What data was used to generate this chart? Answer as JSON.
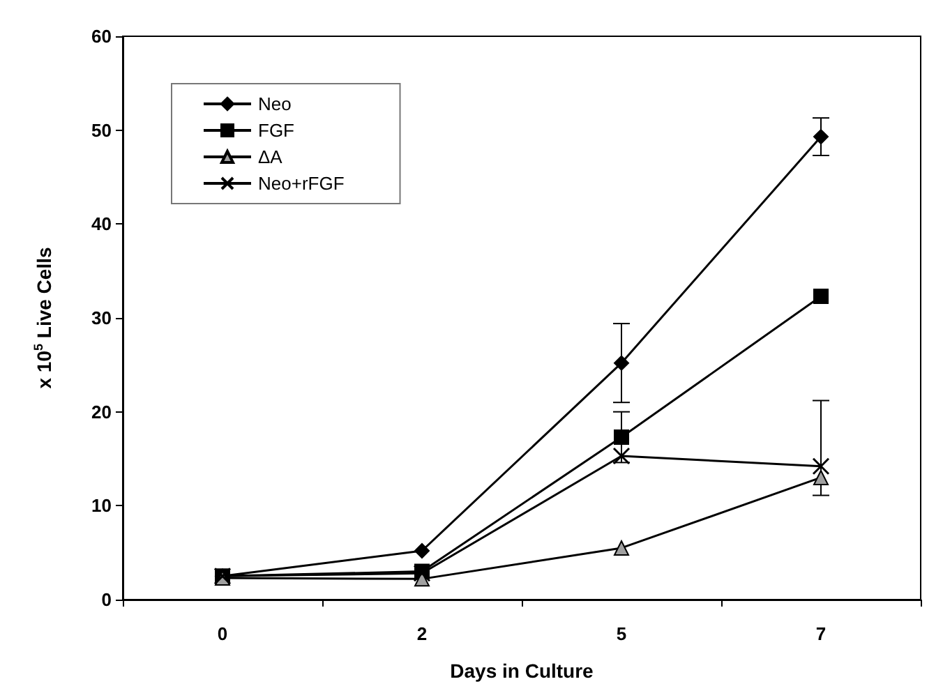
{
  "chart_data": {
    "type": "line",
    "xlabel": "Days in Culture",
    "ylabel": "x 10$^{5}$ Live Cells",
    "categories": [
      "0",
      "2",
      "5",
      "7"
    ],
    "series": [
      {
        "name": "Neo",
        "color": "#000000",
        "marker": "diamond",
        "values": [
          2.5,
          5.2,
          25.2,
          49.3
        ],
        "errors": [
          null,
          null,
          [
            21.0,
            29.4
          ],
          [
            47.3,
            51.3
          ]
        ]
      },
      {
        "name": "FGF",
        "color": "#000000",
        "marker": "square",
        "values": [
          2.5,
          3.0,
          17.3,
          32.3
        ],
        "errors": [
          null,
          null,
          [
            14.6,
            20.0
          ],
          null
        ]
      },
      {
        "name": "ΔA",
        "color": "#a0a0a0",
        "marker": "triangle",
        "values": [
          2.3,
          2.2,
          5.5,
          13.0
        ]
      },
      {
        "name": "Neo+rFGF",
        "color": "#000000",
        "marker": "cross",
        "values": [
          2.5,
          2.8,
          15.3,
          14.2
        ],
        "errors": [
          null,
          null,
          null,
          [
            11.1,
            21.2
          ]
        ]
      }
    ],
    "ylim": [
      0,
      60
    ],
    "yticks": [
      0,
      10,
      20,
      30,
      40,
      50,
      60
    ],
    "grid": false,
    "legend": "top left",
    "line_style": "solid"
  }
}
